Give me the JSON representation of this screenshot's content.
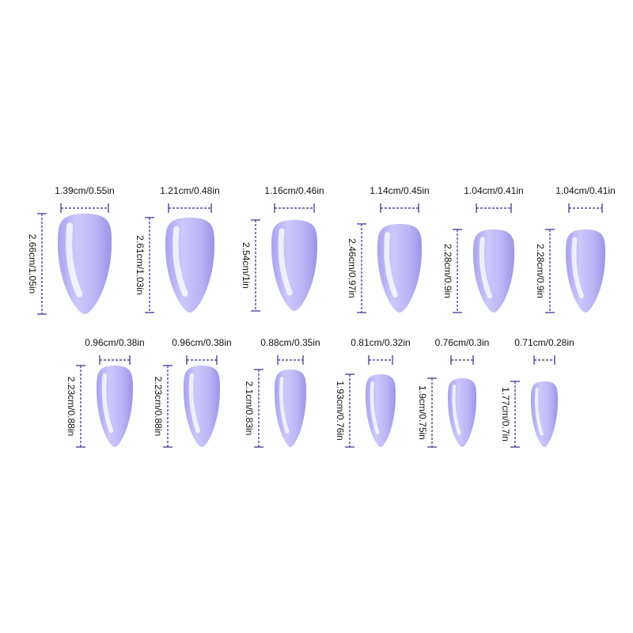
{
  "nails": [
    {
      "width": "1.39cm/0.55in",
      "length": "2.66cm/1.05in"
    },
    {
      "width": "1.21cm/0.48in",
      "length": "2.61cm/1.03in"
    },
    {
      "width": "1.16cm/0.46in",
      "length": "2.54cm/1in"
    },
    {
      "width": "1.14cm/0.45in",
      "length": "2.46cm/0.97in"
    },
    {
      "width": "1.04cm/0.41in",
      "length": "2.28cm/0.9in"
    },
    {
      "width": "1.04cm/0.41in",
      "length": "2.28cm/0.9in"
    },
    {
      "width": "0.96cm/0.38in",
      "length": "2.23cm/0.88in"
    },
    {
      "width": "0.96cm/0.38in",
      "length": "2.23cm/0.88in"
    },
    {
      "width": "0.88cm/0.35in",
      "length": "2.1cm/0.83in"
    },
    {
      "width": "0.81cm/0.32in",
      "length": "1.93cm/0.76in"
    },
    {
      "width": "0.76cm/0.3in",
      "length": "1.9cm/0.75in"
    },
    {
      "width": "0.71cm/0.28in",
      "length": "1.77cm/0.7in"
    }
  ]
}
